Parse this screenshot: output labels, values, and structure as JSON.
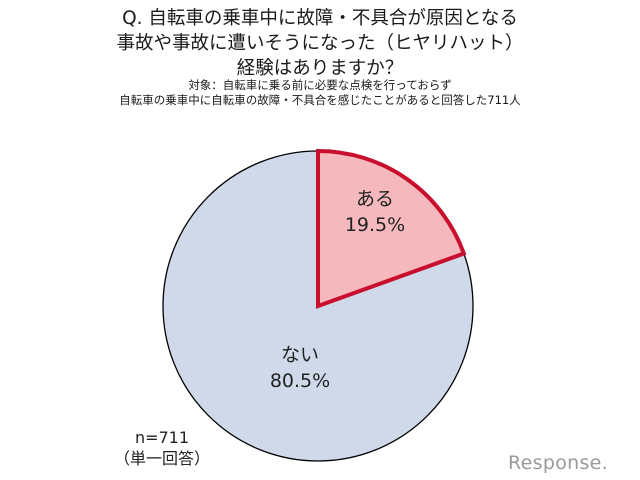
{
  "header": {
    "title_line1": "Q. 自転車の乗車中に故障・不具合が原因となる",
    "title_line2": "事故や事故に遭いそうになった（ヒヤリハット）",
    "title_line3": "経験はありますか？",
    "subtitle_line1": "対象：自転車に乗る前に必要な点検を行っておらず",
    "subtitle_line2": "自転車の乗車中に自転車の故障・不具合を感じたことがあると回答した711人"
  },
  "slices": {
    "yes": {
      "label": "ある",
      "value_text": "19.5%",
      "fill": "#f5b8bd",
      "stroke": "#c8102e"
    },
    "no": {
      "label": "ない",
      "value_text": "80.5%",
      "fill": "#cfd9ea",
      "stroke": "#000000"
    }
  },
  "footnote": {
    "n": "n=711",
    "type": "（単一回答）"
  },
  "watermark": {
    "text": "Response."
  },
  "chart_data": {
    "type": "pie",
    "title": "Q. 自転車の乗車中に故障・不具合が原因となる事故や事故に遭いそうになった（ヒヤリハット）経験はありますか？",
    "subtitle": "対象：自転車に乗る前に必要な点検を行っておらず自転車の乗車中に自転車の故障・不具合を感じたことがあると回答した711人",
    "categories": [
      "ある",
      "ない"
    ],
    "values": [
      19.5,
      80.5
    ],
    "unit": "%",
    "colors": [
      "#f5b8bd",
      "#cfd9ea"
    ],
    "annotations": [
      "n=711",
      "（単一回答）"
    ],
    "start_angle": "12 o'clock, clockwise"
  }
}
